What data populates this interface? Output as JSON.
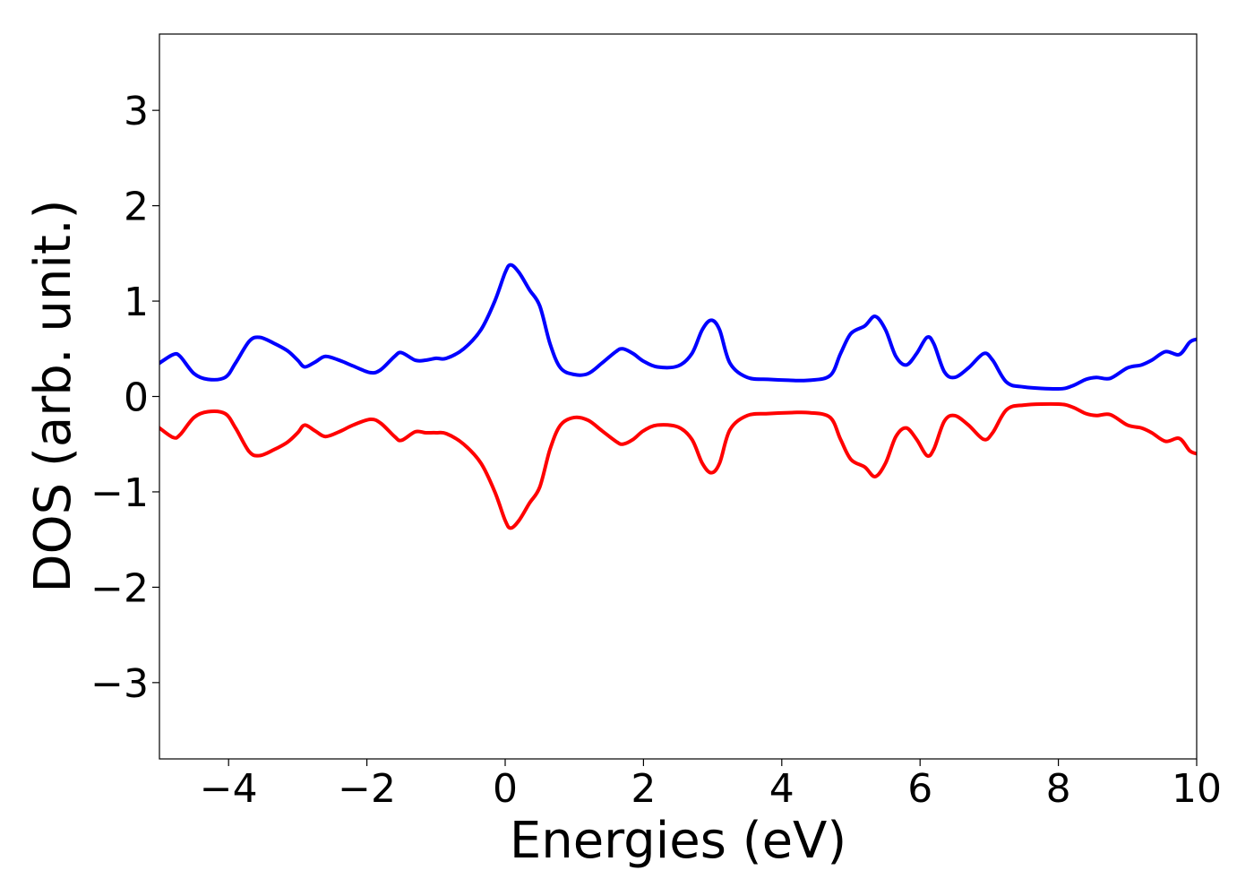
{
  "chart_data": {
    "type": "line",
    "xlabel": "Energies (eV)",
    "ylabel": "DOS (arb. unit.)",
    "xlim": [
      -5,
      10
    ],
    "ylim": [
      -3.8,
      3.8
    ],
    "xticks": [
      -4,
      -2,
      0,
      2,
      4,
      6,
      8,
      10
    ],
    "yticks": [
      -3,
      -2,
      -1,
      0,
      1,
      2,
      3
    ],
    "xtick_labels": [
      "−4",
      "−2",
      "0",
      "2",
      "4",
      "6",
      "8",
      "10"
    ],
    "ytick_labels": [
      "−3",
      "−2",
      "−1",
      "0",
      "1",
      "2",
      "3"
    ],
    "grid": false,
    "series": [
      {
        "color": "#0000ff",
        "points": [
          [
            -5.0,
            0.35
          ],
          [
            -4.8,
            0.44
          ],
          [
            -4.7,
            0.42
          ],
          [
            -4.5,
            0.24
          ],
          [
            -4.3,
            0.18
          ],
          [
            -4.05,
            0.2
          ],
          [
            -3.9,
            0.35
          ],
          [
            -3.7,
            0.58
          ],
          [
            -3.55,
            0.62
          ],
          [
            -3.35,
            0.56
          ],
          [
            -3.15,
            0.48
          ],
          [
            -3.0,
            0.38
          ],
          [
            -2.9,
            0.31
          ],
          [
            -2.75,
            0.36
          ],
          [
            -2.6,
            0.42
          ],
          [
            -2.4,
            0.38
          ],
          [
            -2.2,
            0.32
          ],
          [
            -1.95,
            0.25
          ],
          [
            -1.8,
            0.28
          ],
          [
            -1.6,
            0.42
          ],
          [
            -1.5,
            0.46
          ],
          [
            -1.3,
            0.38
          ],
          [
            -1.15,
            0.38
          ],
          [
            -1.0,
            0.4
          ],
          [
            -0.85,
            0.4
          ],
          [
            -0.6,
            0.5
          ],
          [
            -0.35,
            0.7
          ],
          [
            -0.15,
            1.0
          ],
          [
            0.0,
            1.3
          ],
          [
            0.08,
            1.38
          ],
          [
            0.2,
            1.3
          ],
          [
            0.35,
            1.12
          ],
          [
            0.5,
            0.95
          ],
          [
            0.65,
            0.55
          ],
          [
            0.8,
            0.3
          ],
          [
            1.0,
            0.23
          ],
          [
            1.2,
            0.24
          ],
          [
            1.4,
            0.35
          ],
          [
            1.6,
            0.47
          ],
          [
            1.7,
            0.5
          ],
          [
            1.85,
            0.45
          ],
          [
            2.0,
            0.37
          ],
          [
            2.2,
            0.31
          ],
          [
            2.5,
            0.32
          ],
          [
            2.7,
            0.45
          ],
          [
            2.85,
            0.7
          ],
          [
            2.98,
            0.8
          ],
          [
            3.1,
            0.7
          ],
          [
            3.25,
            0.35
          ],
          [
            3.5,
            0.2
          ],
          [
            3.8,
            0.18
          ],
          [
            4.1,
            0.17
          ],
          [
            4.4,
            0.17
          ],
          [
            4.7,
            0.22
          ],
          [
            4.85,
            0.45
          ],
          [
            5.0,
            0.66
          ],
          [
            5.2,
            0.74
          ],
          [
            5.35,
            0.84
          ],
          [
            5.5,
            0.7
          ],
          [
            5.65,
            0.42
          ],
          [
            5.8,
            0.33
          ],
          [
            5.95,
            0.45
          ],
          [
            6.1,
            0.62
          ],
          [
            6.2,
            0.55
          ],
          [
            6.35,
            0.26
          ],
          [
            6.5,
            0.2
          ],
          [
            6.7,
            0.3
          ],
          [
            6.92,
            0.45
          ],
          [
            7.05,
            0.38
          ],
          [
            7.25,
            0.15
          ],
          [
            7.5,
            0.1
          ],
          [
            8.0,
            0.08
          ],
          [
            8.2,
            0.11
          ],
          [
            8.4,
            0.18
          ],
          [
            8.55,
            0.2
          ],
          [
            8.75,
            0.19
          ],
          [
            9.0,
            0.3
          ],
          [
            9.2,
            0.33
          ],
          [
            9.35,
            0.38
          ],
          [
            9.55,
            0.47
          ],
          [
            9.75,
            0.44
          ],
          [
            9.9,
            0.57
          ],
          [
            10.0,
            0.6
          ]
        ]
      },
      {
        "color": "#ff0000",
        "points": [
          [
            -5.0,
            -0.33
          ],
          [
            -4.8,
            -0.43
          ],
          [
            -4.7,
            -0.4
          ],
          [
            -4.5,
            -0.22
          ],
          [
            -4.3,
            -0.16
          ],
          [
            -4.05,
            -0.18
          ],
          [
            -3.9,
            -0.33
          ],
          [
            -3.7,
            -0.58
          ],
          [
            -3.55,
            -0.62
          ],
          [
            -3.35,
            -0.56
          ],
          [
            -3.15,
            -0.48
          ],
          [
            -3.0,
            -0.38
          ],
          [
            -2.9,
            -0.3
          ],
          [
            -2.75,
            -0.36
          ],
          [
            -2.6,
            -0.42
          ],
          [
            -2.4,
            -0.37
          ],
          [
            -2.2,
            -0.3
          ],
          [
            -1.95,
            -0.24
          ],
          [
            -1.8,
            -0.28
          ],
          [
            -1.6,
            -0.42
          ],
          [
            -1.5,
            -0.46
          ],
          [
            -1.3,
            -0.37
          ],
          [
            -1.15,
            -0.38
          ],
          [
            -1.0,
            -0.38
          ],
          [
            -0.85,
            -0.39
          ],
          [
            -0.6,
            -0.5
          ],
          [
            -0.35,
            -0.7
          ],
          [
            -0.15,
            -1.0
          ],
          [
            0.0,
            -1.3
          ],
          [
            0.08,
            -1.38
          ],
          [
            0.2,
            -1.3
          ],
          [
            0.35,
            -1.12
          ],
          [
            0.5,
            -0.95
          ],
          [
            0.65,
            -0.55
          ],
          [
            0.8,
            -0.3
          ],
          [
            1.0,
            -0.22
          ],
          [
            1.2,
            -0.25
          ],
          [
            1.4,
            -0.36
          ],
          [
            1.6,
            -0.47
          ],
          [
            1.7,
            -0.5
          ],
          [
            1.85,
            -0.45
          ],
          [
            2.0,
            -0.36
          ],
          [
            2.2,
            -0.3
          ],
          [
            2.5,
            -0.32
          ],
          [
            2.7,
            -0.45
          ],
          [
            2.85,
            -0.7
          ],
          [
            2.98,
            -0.8
          ],
          [
            3.1,
            -0.7
          ],
          [
            3.25,
            -0.35
          ],
          [
            3.5,
            -0.2
          ],
          [
            3.8,
            -0.18
          ],
          [
            4.1,
            -0.17
          ],
          [
            4.4,
            -0.17
          ],
          [
            4.7,
            -0.22
          ],
          [
            4.85,
            -0.45
          ],
          [
            5.0,
            -0.66
          ],
          [
            5.2,
            -0.74
          ],
          [
            5.35,
            -0.84
          ],
          [
            5.5,
            -0.7
          ],
          [
            5.65,
            -0.42
          ],
          [
            5.8,
            -0.33
          ],
          [
            5.95,
            -0.45
          ],
          [
            6.1,
            -0.62
          ],
          [
            6.2,
            -0.55
          ],
          [
            6.35,
            -0.26
          ],
          [
            6.5,
            -0.2
          ],
          [
            6.7,
            -0.3
          ],
          [
            6.92,
            -0.45
          ],
          [
            7.05,
            -0.38
          ],
          [
            7.25,
            -0.14
          ],
          [
            7.5,
            -0.09
          ],
          [
            8.0,
            -0.08
          ],
          [
            8.2,
            -0.11
          ],
          [
            8.4,
            -0.18
          ],
          [
            8.55,
            -0.2
          ],
          [
            8.75,
            -0.19
          ],
          [
            9.0,
            -0.3
          ],
          [
            9.2,
            -0.33
          ],
          [
            9.35,
            -0.38
          ],
          [
            9.55,
            -0.47
          ],
          [
            9.75,
            -0.44
          ],
          [
            9.9,
            -0.57
          ],
          [
            10.0,
            -0.6
          ]
        ]
      }
    ]
  }
}
